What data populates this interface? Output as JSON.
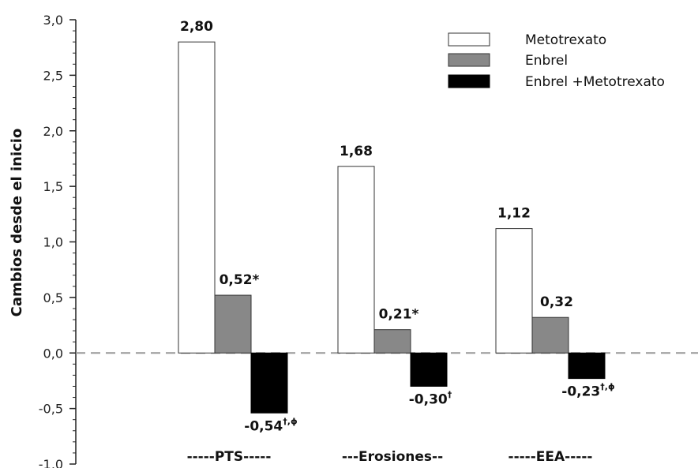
{
  "chart_data": {
    "type": "bar",
    "ylabel": "Cambios desde el inicio",
    "ylim": [
      -1.0,
      3.0
    ],
    "yticks": [
      "3,0",
      "2,5",
      "2,0",
      "1,5",
      "1,0",
      "0,5",
      "0,0",
      "-0,5",
      "-1,0"
    ],
    "categories": [
      "-----PTS-----",
      "---Erosiones--",
      "-----EEA-----"
    ],
    "legend_position": "top-right",
    "colors": {
      "Metotrexato": "#ffffff",
      "Enbrel": "#888888",
      "Enbrel +Metotrexato": "#000000"
    },
    "series": [
      {
        "name": "Metotrexato",
        "values": [
          2.8,
          1.68,
          1.12
        ],
        "labels": [
          {
            "text": "2,80",
            "sup": ""
          },
          {
            "text": "1,68",
            "sup": ""
          },
          {
            "text": "1,12",
            "sup": ""
          }
        ]
      },
      {
        "name": "Enbrel",
        "values": [
          0.52,
          0.21,
          0.32
        ],
        "labels": [
          {
            "text": "0,52*",
            "sup": ""
          },
          {
            "text": "0,21*",
            "sup": ""
          },
          {
            "text": "0,32",
            "sup": ""
          }
        ]
      },
      {
        "name": "Enbrel +Metotrexato",
        "values": [
          -0.54,
          -0.3,
          -0.23
        ],
        "labels": [
          {
            "text": "-0,54",
            "sup": "†,ϕ"
          },
          {
            "text": "-0,30",
            "sup": "†"
          },
          {
            "text": "-0,23",
            "sup": "†,ϕ"
          }
        ]
      }
    ]
  }
}
